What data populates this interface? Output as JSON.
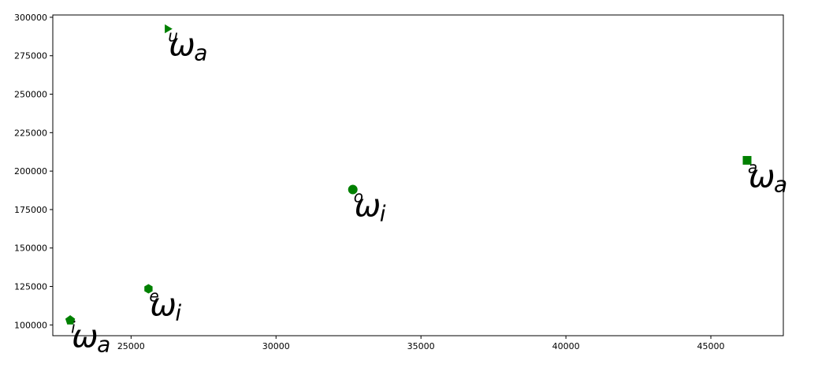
{
  "chart_data": {
    "type": "scatter",
    "title": "",
    "xlabel": "",
    "ylabel": "",
    "xlim": [
      22300,
      47500
    ],
    "ylim": [
      93000,
      301500
    ],
    "xticks": [
      25000,
      30000,
      35000,
      40000,
      45000
    ],
    "yticks": [
      100000,
      125000,
      150000,
      175000,
      200000,
      225000,
      250000,
      275000,
      300000
    ],
    "xtick_labels": [
      "25000",
      "30000",
      "35000",
      "40000",
      "45000"
    ],
    "ytick_labels": [
      "100000",
      "125000",
      "150000",
      "175000",
      "200000",
      "225000",
      "250000",
      "275000",
      "300000"
    ],
    "grid": false,
    "marker_color": "#008000",
    "points": [
      {
        "x": 22900,
        "y": 103000,
        "marker": "pentagon",
        "label": "ω",
        "sub": "a",
        "sup": "i"
      },
      {
        "x": 25600,
        "y": 123500,
        "marker": "hexagon",
        "label": "ω",
        "sub": "i",
        "sup": "e"
      },
      {
        "x": 26250,
        "y": 292500,
        "marker": "triangle-right",
        "label": "ω",
        "sub": "a",
        "sup": "u"
      },
      {
        "x": 32650,
        "y": 188000,
        "marker": "circle",
        "label": "ω",
        "sub": "i",
        "sup": "o"
      },
      {
        "x": 46250,
        "y": 207000,
        "marker": "square",
        "label": "ω",
        "sub": "a",
        "sup": "a"
      }
    ]
  }
}
